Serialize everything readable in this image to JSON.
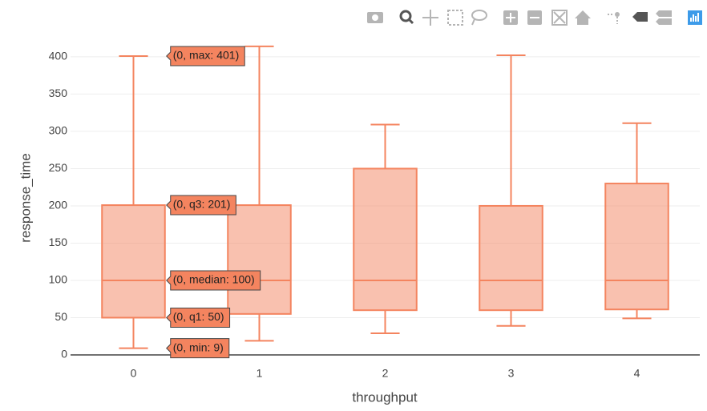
{
  "chart_data": {
    "type": "box",
    "x_label": "throughput",
    "y_label": "response_time",
    "categories": [
      "0",
      "1",
      "2",
      "3",
      "4"
    ],
    "color": "#f4845f",
    "min": [
      9,
      19,
      29,
      39,
      49
    ],
    "q1": [
      50,
      55,
      60,
      60,
      61
    ],
    "median": [
      100,
      100,
      100,
      100,
      100
    ],
    "q3": [
      201,
      201,
      250,
      200,
      230
    ],
    "max": [
      401,
      414,
      309,
      402,
      311
    ],
    "hover_labels": [
      "(0, max: 401)",
      "(0, q3: 201)",
      "(0, median: 100)",
      "(0, q1: 50)",
      "(0, min: 9)"
    ],
    "ylim": [
      0,
      430
    ],
    "yticks": [
      0,
      50,
      100,
      150,
      200,
      250,
      300,
      350,
      400
    ],
    "grid": true
  }
}
